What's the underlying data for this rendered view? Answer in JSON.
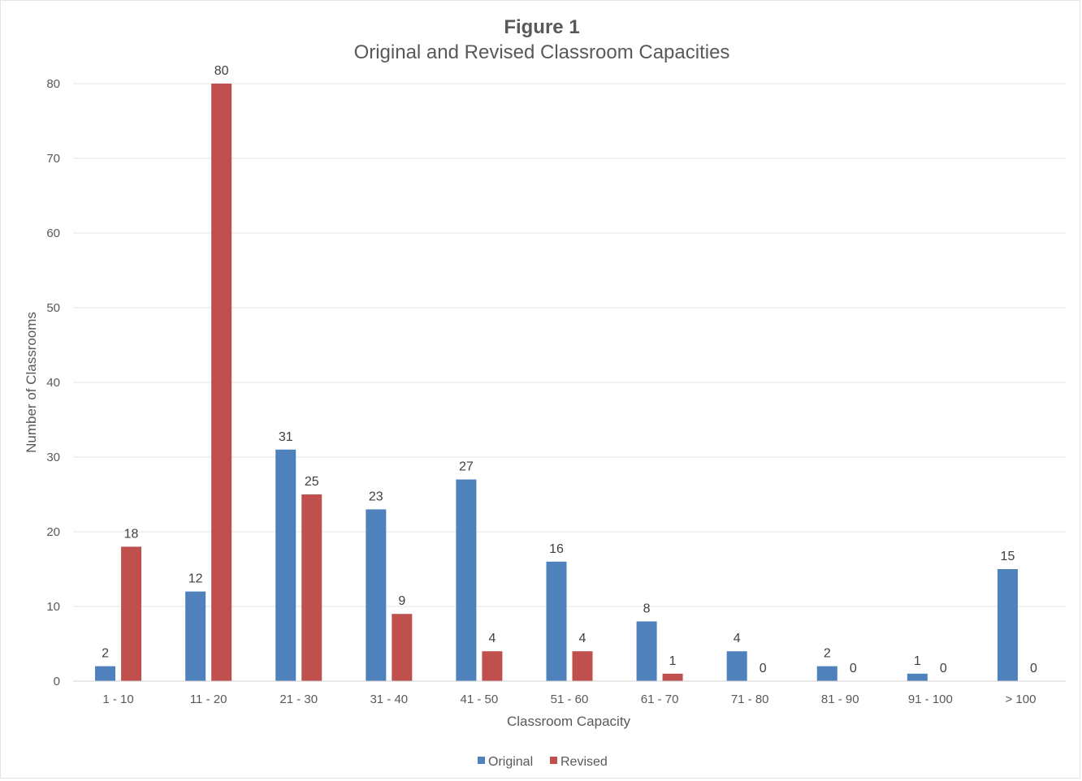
{
  "chart_data": {
    "type": "bar",
    "title": "Figure 1",
    "subtitle": "Original and Revised Classroom Capacities",
    "xlabel": "Classroom Capacity",
    "ylabel": "Number of Classrooms",
    "ylim": [
      0,
      80
    ],
    "yticks": [
      0,
      10,
      20,
      30,
      40,
      50,
      60,
      70,
      80
    ],
    "grid": true,
    "legend_position": "bottom",
    "categories": [
      "1 - 10",
      "11 - 20",
      "21 - 30",
      "31 - 40",
      "41 - 50",
      "51 - 60",
      "61 - 70",
      "71 - 80",
      "81 - 90",
      "91 - 100",
      "> 100"
    ],
    "series": [
      {
        "name": "Original",
        "color": "#4f81bd",
        "values": [
          2,
          12,
          31,
          23,
          27,
          16,
          8,
          4,
          2,
          1,
          15
        ]
      },
      {
        "name": "Revised",
        "color": "#c0504d",
        "values": [
          18,
          80,
          25,
          9,
          4,
          4,
          1,
          0,
          0,
          0,
          0
        ]
      }
    ]
  }
}
